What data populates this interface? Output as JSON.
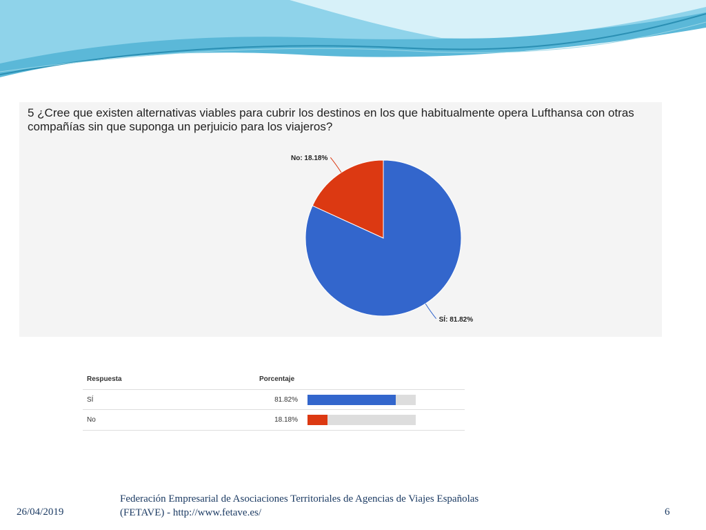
{
  "slide": {
    "question": "5 ¿Cree que existen alternativas viables para cubrir los destinos en los que habitualmente opera Lufthansa con otras compañías sin que suponga un perjuicio para los viajeros?",
    "footer": {
      "date": "26/04/2019",
      "org_line1": "Federación Empresarial de Asociaciones Territoriales de Agencias de Viajes Españolas",
      "org_line2": "(FETAVE)  - http://www.fetave.es/",
      "page": "6"
    }
  },
  "chart_data": {
    "type": "pie",
    "categories": [
      "SÍ",
      "No"
    ],
    "values": [
      81.82,
      18.18
    ],
    "labels": [
      "SÍ: 81.82%",
      "No: 18.18%"
    ],
    "colors": [
      "#3366cc",
      "#dc3912"
    ]
  },
  "table": {
    "headers": {
      "response": "Respuesta",
      "percent": "Porcentaje"
    },
    "rows": [
      {
        "response": "SÍ",
        "percent": "81.82%",
        "value": 81.82,
        "color": "#3366cc"
      },
      {
        "response": "No",
        "percent": "18.18%",
        "value": 18.18,
        "color": "#dc3912"
      }
    ]
  }
}
